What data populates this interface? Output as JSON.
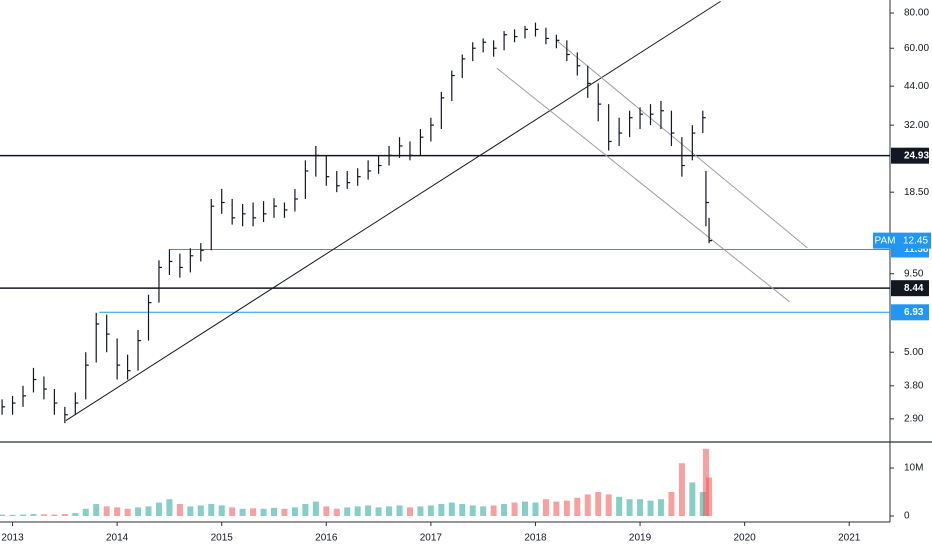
{
  "chart_data": {
    "type": "ohlc",
    "x": [
      2012.9,
      2013.0,
      2013.1,
      2013.2,
      2013.3,
      2013.4,
      2013.5,
      2013.6,
      2013.7,
      2013.8,
      2013.9,
      2014.0,
      2014.1,
      2014.2,
      2014.3,
      2014.4,
      2014.5,
      2014.6,
      2014.7,
      2014.8,
      2014.9,
      2015.0,
      2015.1,
      2015.2,
      2015.3,
      2015.4,
      2015.5,
      2015.6,
      2015.7,
      2015.8,
      2015.9,
      2016.0,
      2016.1,
      2016.2,
      2016.3,
      2016.4,
      2016.5,
      2016.6,
      2016.7,
      2016.8,
      2016.9,
      2017.0,
      2017.1,
      2017.2,
      2017.3,
      2017.4,
      2017.5,
      2017.6,
      2017.7,
      2017.8,
      2017.9,
      2018.0,
      2018.1,
      2018.2,
      2018.3,
      2018.4,
      2018.5,
      2018.6,
      2018.7,
      2018.8,
      2018.9,
      2019.0,
      2019.1,
      2019.2,
      2019.3,
      2019.4,
      2019.5,
      2019.6,
      2019.63,
      2019.66
    ],
    "high": [
      3.4,
      3.5,
      3.8,
      4.4,
      4.1,
      3.7,
      3.2,
      3.6,
      5.0,
      6.9,
      6.8,
      5.6,
      4.9,
      6.0,
      8.0,
      10.6,
      11.6,
      11.2,
      11.7,
      12.2,
      17.5,
      19.0,
      17.5,
      16.8,
      17.0,
      17.2,
      17.6,
      17.0,
      19.0,
      24,
      27,
      25,
      22,
      22,
      22.5,
      24,
      25,
      27,
      29,
      28,
      31,
      34,
      42,
      50,
      57,
      63,
      65,
      64,
      69,
      70,
      72,
      74,
      71,
      67,
      64,
      58,
      52,
      45,
      38,
      34,
      36,
      37,
      38,
      39,
      36,
      29,
      32,
      36,
      22,
      15
    ],
    "low": [
      3.0,
      3.0,
      3.2,
      3.6,
      3.4,
      3.0,
      2.8,
      3.0,
      3.4,
      4.6,
      5.0,
      4.0,
      4.0,
      4.3,
      5.5,
      7.5,
      9.4,
      9.2,
      9.6,
      10.5,
      11.5,
      15.5,
      14.2,
      14.0,
      14.0,
      14.5,
      15.0,
      15.0,
      15.8,
      17.5,
      21,
      19.5,
      18.5,
      19,
      19.5,
      20.5,
      21.5,
      23,
      24.5,
      24,
      25,
      28,
      31,
      39,
      47,
      54,
      58,
      56,
      59,
      63,
      65,
      66,
      62,
      60,
      54,
      48,
      40,
      33,
      26,
      27,
      29,
      31,
      32,
      31,
      27,
      21,
      24,
      30,
      14,
      12.2
    ],
    "close": [
      3.2,
      3.3,
      3.5,
      4.0,
      3.7,
      3.3,
      3.0,
      3.3,
      4.5,
      6.3,
      5.8,
      4.5,
      4.3,
      5.5,
      7.5,
      10.0,
      10.5,
      10.0,
      11.0,
      11.5,
      16.5,
      17.0,
      15.0,
      15.5,
      15.0,
      15.5,
      16.5,
      16.0,
      17.5,
      22,
      25,
      21,
      19.5,
      20,
      21,
      22,
      23,
      25,
      27,
      25,
      29,
      32,
      40,
      48,
      55,
      60,
      63,
      60,
      67,
      66,
      70,
      70,
      65,
      64,
      57,
      52,
      45,
      38,
      28,
      30,
      34,
      35,
      35,
      36,
      30,
      23,
      30,
      34,
      17,
      12.45
    ],
    "color": "#131722",
    "xlim": [
      2012.88,
      2021.39
    ],
    "xticks": [
      2013,
      2014,
      2015,
      2016,
      2017,
      2018,
      2019,
      2020,
      2021
    ],
    "log_scale": true,
    "ylim": [
      2.44,
      89
    ],
    "yticks": [
      {
        "value": 80,
        "label": "80.00"
      },
      {
        "value": 60,
        "label": "60.00"
      },
      {
        "value": 44,
        "label": "44.00"
      },
      {
        "value": 32,
        "label": "32.00"
      },
      {
        "value": 18.5,
        "label": "18.50"
      },
      {
        "value": 9.5,
        "label": "9.50"
      },
      {
        "value": 5,
        "label": "5.00"
      },
      {
        "value": 3.8,
        "label": "3.80"
      },
      {
        "value": 2.9,
        "label": "2.90"
      }
    ],
    "hlines": [
      {
        "value": 24.93,
        "from": 2012.88,
        "color": "#131722"
      },
      {
        "value": 11.58,
        "from": 2014.5,
        "color": "#2196f3"
      },
      {
        "value": 8.44,
        "from": 2012.88,
        "color": "#131722"
      },
      {
        "value": 6.93,
        "from": 2013.83,
        "color": "#2196f3"
      }
    ],
    "trendlines": [
      {
        "x1": 2013.51,
        "y1": 2.86,
        "x2": 2019.77,
        "y2": 88,
        "color": "#131722"
      },
      {
        "x1": 2017.63,
        "y1": 51,
        "x2": 2020.43,
        "y2": 7.55,
        "color": "#9e9e9e"
      },
      {
        "x1": 2018.2,
        "y1": 64,
        "x2": 2020.6,
        "y2": 11.73,
        "color": "#9e9e9e"
      }
    ],
    "last_price": {
      "label": "PAM",
      "value": 12.45,
      "color": "#2196f3"
    },
    "volume": {
      "up_color": "#26a69a",
      "down_color": "#ef5350",
      "ylim": [
        0,
        14800000
      ],
      "yticks": [
        {
          "value": 10000000,
          "label": "10M"
        },
        0
      ],
      "values": [
        300000,
        250000,
        300000,
        400000,
        350000,
        300000,
        400000,
        600000,
        1500000,
        2500000,
        2000000,
        1800000,
        1500000,
        1800000,
        2000000,
        2800000,
        3500000,
        2500000,
        2000000,
        2200000,
        2500000,
        2200000,
        1800000,
        1500000,
        1600000,
        1500000,
        1700000,
        1500000,
        1800000,
        2500000,
        3000000,
        2000000,
        1500000,
        1800000,
        2000000,
        2200000,
        1800000,
        2000000,
        2200000,
        1800000,
        2000000,
        2200000,
        2500000,
        2800000,
        2500000,
        2200000,
        2000000,
        2200000,
        2500000,
        2800000,
        3000000,
        2800000,
        3500000,
        3000000,
        3200000,
        3800000,
        4500000,
        5000000,
        4500000,
        4000000,
        3500000,
        3500000,
        3200000,
        3500000,
        5000000,
        11000000,
        7000000,
        5000000,
        14000000,
        8000000
      ]
    }
  }
}
